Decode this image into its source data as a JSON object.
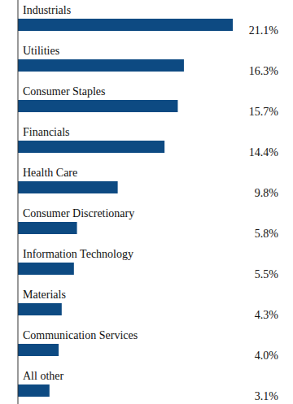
{
  "chart_data": {
    "type": "bar",
    "orientation": "horizontal",
    "categories": [
      "Industrials",
      "Utilities",
      "Consumer Staples",
      "Financials",
      "Health Care",
      "Consumer Discretionary",
      "Information Technology",
      "Materials",
      "Communication Services",
      "All other"
    ],
    "values": [
      21.1,
      16.3,
      15.7,
      14.4,
      9.8,
      5.8,
      5.5,
      4.3,
      4.0,
      3.1
    ],
    "value_labels": [
      "21.1%",
      "16.3%",
      "15.7%",
      "14.4%",
      "9.8%",
      "5.8%",
      "5.5%",
      "4.3%",
      "4.0%",
      "3.1%"
    ],
    "data_labels": true,
    "tick_labels": false,
    "grid": false,
    "color": "#0d4a82",
    "xlim": [
      0,
      21.1
    ]
  }
}
